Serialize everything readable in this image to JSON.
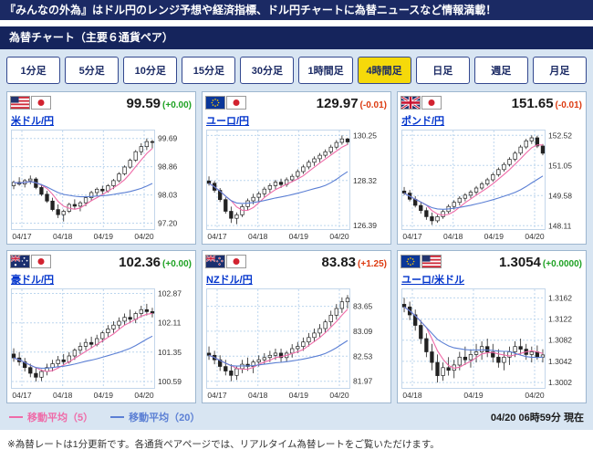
{
  "top_bar": {
    "text": "『みんなの外為』はドル円のレンジ予想や経済指標、ドル円チャートに為替ニュースなど情報満載！"
  },
  "header": {
    "title": "為替チャート（主要６通貨ペア）"
  },
  "timeframes": [
    {
      "label": "1分足",
      "selected": false
    },
    {
      "label": "5分足",
      "selected": false
    },
    {
      "label": "10分足",
      "selected": false
    },
    {
      "label": "15分足",
      "selected": false
    },
    {
      "label": "30分足",
      "selected": false
    },
    {
      "label": "1時間足",
      "selected": false
    },
    {
      "label": "4時間足",
      "selected": true
    },
    {
      "label": "日足",
      "selected": false
    },
    {
      "label": "週足",
      "selected": false
    },
    {
      "label": "月足",
      "selected": false
    }
  ],
  "legend": {
    "ma5_label": "移動平均（5）",
    "ma20_label": "移動平均（20）",
    "ma5_color": "#ef6ba8",
    "ma20_color": "#5b7fd4",
    "timestamp": "04/20 06時59分 現在"
  },
  "footer_note": "※為替レートは1分更新です。各通貨ペアページでは、リアルタイム為替レートをご覧いただけます。",
  "colors": {
    "navy": "#1b2a64",
    "content_bg": "#d8e5f2",
    "selected_tab": "#f5d90a",
    "link_blue": "#0033cc",
    "zero_change_green": "#1fa224",
    "nonzero_change_red": "#dd3b11",
    "grid_blue": "#bcd6ee"
  },
  "chart_data": [
    {
      "type": "candlestick",
      "pair": "米ドル/円",
      "flags": [
        "us",
        "jp"
      ],
      "price": "99.59",
      "change": "(+0.00)",
      "change_color": "#1fa224",
      "y_labels": [
        "99.69",
        "98.86",
        "98.03",
        "97.20"
      ],
      "x_labels": [
        "04/17",
        "04/18",
        "04/19",
        "04/20"
      ],
      "y_min": 97.0,
      "y_max": 99.95,
      "candles": [
        [
          98.3,
          98.45,
          98.2,
          98.4
        ],
        [
          98.4,
          98.55,
          98.3,
          98.35
        ],
        [
          98.35,
          98.5,
          98.25,
          98.45
        ],
        [
          98.45,
          98.6,
          98.35,
          98.5
        ],
        [
          98.5,
          98.55,
          98.2,
          98.25
        ],
        [
          98.25,
          98.35,
          98.0,
          98.05
        ],
        [
          98.05,
          98.15,
          97.8,
          97.85
        ],
        [
          97.85,
          97.95,
          97.55,
          97.6
        ],
        [
          97.6,
          97.75,
          97.35,
          97.45
        ],
        [
          97.45,
          97.6,
          97.25,
          97.55
        ],
        [
          97.55,
          97.8,
          97.5,
          97.75
        ],
        [
          97.75,
          97.9,
          97.6,
          97.7
        ],
        [
          97.7,
          97.85,
          97.55,
          97.8
        ],
        [
          97.8,
          98.0,
          97.7,
          97.95
        ],
        [
          97.95,
          98.15,
          97.85,
          98.1
        ],
        [
          98.1,
          98.25,
          98.0,
          98.2
        ],
        [
          98.2,
          98.3,
          98.05,
          98.15
        ],
        [
          98.15,
          98.35,
          98.1,
          98.3
        ],
        [
          98.3,
          98.5,
          98.2,
          98.45
        ],
        [
          98.45,
          98.7,
          98.4,
          98.65
        ],
        [
          98.65,
          98.9,
          98.6,
          98.85
        ],
        [
          98.85,
          99.1,
          98.8,
          99.05
        ],
        [
          99.05,
          99.35,
          99.0,
          99.3
        ],
        [
          99.3,
          99.55,
          99.2,
          99.45
        ],
        [
          99.45,
          99.69,
          99.35,
          99.6
        ],
        [
          99.6,
          99.65,
          99.4,
          99.59
        ]
      ]
    },
    {
      "type": "candlestick",
      "pair": "ユーロ/円",
      "flags": [
        "eu",
        "jp"
      ],
      "price": "129.97",
      "change": "(-0.01)",
      "change_color": "#dd3b11",
      "y_labels": [
        "130.25",
        "128.32",
        "126.39"
      ],
      "x_labels": [
        "04/17",
        "04/18",
        "04/19",
        "04/20"
      ],
      "y_min": 126.2,
      "y_max": 130.5,
      "candles": [
        [
          128.3,
          128.5,
          128.1,
          128.2
        ],
        [
          128.2,
          128.3,
          127.8,
          127.9
        ],
        [
          127.9,
          128.0,
          127.4,
          127.5
        ],
        [
          127.5,
          127.6,
          126.9,
          127.0
        ],
        [
          127.0,
          127.2,
          126.5,
          126.7
        ],
        [
          126.7,
          126.95,
          126.45,
          126.85
        ],
        [
          126.85,
          127.3,
          126.75,
          127.2
        ],
        [
          127.2,
          127.55,
          127.05,
          127.45
        ],
        [
          127.45,
          127.75,
          127.3,
          127.6
        ],
        [
          127.6,
          127.85,
          127.4,
          127.75
        ],
        [
          127.75,
          128.05,
          127.6,
          127.95
        ],
        [
          127.95,
          128.2,
          127.8,
          128.1
        ],
        [
          128.1,
          128.35,
          127.95,
          128.25
        ],
        [
          128.25,
          128.4,
          128.0,
          128.15
        ],
        [
          128.15,
          128.45,
          128.05,
          128.35
        ],
        [
          128.35,
          128.6,
          128.25,
          128.5
        ],
        [
          128.5,
          128.8,
          128.4,
          128.7
        ],
        [
          128.7,
          129.0,
          128.6,
          128.9
        ],
        [
          128.9,
          129.2,
          128.8,
          129.1
        ],
        [
          129.1,
          129.35,
          128.95,
          129.25
        ],
        [
          129.25,
          129.5,
          129.1,
          129.4
        ],
        [
          129.4,
          129.65,
          129.3,
          129.55
        ],
        [
          129.55,
          129.85,
          129.45,
          129.75
        ],
        [
          129.75,
          130.05,
          129.65,
          129.95
        ],
        [
          129.95,
          130.25,
          129.85,
          130.1
        ],
        [
          130.1,
          130.15,
          129.85,
          129.97
        ]
      ]
    },
    {
      "type": "candlestick",
      "pair": "ポンド/円",
      "flags": [
        "uk",
        "jp"
      ],
      "price": "151.65",
      "change": "(-0.01)",
      "change_color": "#dd3b11",
      "y_labels": [
        "152.52",
        "151.05",
        "149.58",
        "148.11"
      ],
      "x_labels": [
        "04/17",
        "04/18",
        "04/19",
        "04/20"
      ],
      "y_min": 147.9,
      "y_max": 152.8,
      "candles": [
        [
          149.8,
          150.0,
          149.6,
          149.7
        ],
        [
          149.7,
          149.85,
          149.3,
          149.4
        ],
        [
          149.4,
          149.55,
          149.0,
          149.1
        ],
        [
          149.1,
          149.25,
          148.7,
          148.85
        ],
        [
          148.85,
          149.0,
          148.4,
          148.55
        ],
        [
          148.55,
          148.75,
          148.15,
          148.35
        ],
        [
          148.35,
          148.65,
          148.25,
          148.55
        ],
        [
          148.55,
          148.9,
          148.45,
          148.8
        ],
        [
          148.8,
          149.15,
          148.7,
          149.05
        ],
        [
          149.05,
          149.35,
          148.9,
          149.25
        ],
        [
          149.25,
          149.55,
          149.1,
          149.45
        ],
        [
          149.45,
          149.7,
          149.3,
          149.6
        ],
        [
          149.6,
          149.85,
          149.45,
          149.75
        ],
        [
          149.75,
          150.05,
          149.6,
          149.95
        ],
        [
          149.95,
          150.25,
          149.85,
          150.15
        ],
        [
          150.15,
          150.45,
          150.05,
          150.35
        ],
        [
          150.35,
          150.7,
          150.25,
          150.6
        ],
        [
          150.6,
          150.95,
          150.5,
          150.85
        ],
        [
          150.85,
          151.2,
          150.75,
          151.1
        ],
        [
          151.1,
          151.45,
          151.0,
          151.35
        ],
        [
          151.35,
          151.75,
          151.25,
          151.65
        ],
        [
          151.65,
          152.05,
          151.55,
          151.95
        ],
        [
          151.95,
          152.35,
          151.85,
          152.25
        ],
        [
          152.25,
          152.52,
          152.1,
          152.4
        ],
        [
          152.4,
          152.5,
          151.9,
          152.0
        ],
        [
          152.0,
          152.1,
          151.55,
          151.65
        ]
      ]
    },
    {
      "type": "candlestick",
      "pair": "豪ドル/円",
      "flags": [
        "au",
        "jp"
      ],
      "price": "102.36",
      "change": "(+0.00)",
      "change_color": "#1fa224",
      "y_labels": [
        "102.87",
        "102.11",
        "101.35",
        "100.59"
      ],
      "x_labels": [
        "04/17",
        "04/18",
        "04/19",
        "04/20"
      ],
      "y_min": 100.4,
      "y_max": 103.0,
      "candles": [
        [
          101.3,
          101.45,
          101.1,
          101.2
        ],
        [
          101.2,
          101.35,
          101.0,
          101.1
        ],
        [
          101.1,
          101.2,
          100.85,
          100.95
        ],
        [
          100.95,
          101.05,
          100.7,
          100.8
        ],
        [
          100.8,
          100.95,
          100.59,
          100.7
        ],
        [
          100.7,
          100.9,
          100.6,
          100.85
        ],
        [
          100.85,
          101.05,
          100.75,
          100.95
        ],
        [
          100.95,
          101.15,
          100.85,
          101.05
        ],
        [
          101.05,
          101.25,
          100.95,
          101.15
        ],
        [
          101.15,
          101.3,
          101.0,
          101.1
        ],
        [
          101.1,
          101.35,
          101.05,
          101.25
        ],
        [
          101.25,
          101.45,
          101.15,
          101.4
        ],
        [
          101.4,
          101.6,
          101.3,
          101.5
        ],
        [
          101.5,
          101.7,
          101.4,
          101.6
        ],
        [
          101.6,
          101.75,
          101.45,
          101.55
        ],
        [
          101.55,
          101.8,
          101.5,
          101.7
        ],
        [
          101.7,
          101.9,
          101.6,
          101.85
        ],
        [
          101.85,
          102.05,
          101.75,
          101.95
        ],
        [
          101.95,
          102.15,
          101.85,
          102.05
        ],
        [
          102.05,
          102.25,
          101.95,
          102.15
        ],
        [
          102.15,
          102.35,
          102.05,
          102.25
        ],
        [
          102.25,
          102.45,
          102.1,
          102.2
        ],
        [
          102.2,
          102.4,
          102.1,
          102.35
        ],
        [
          102.35,
          102.55,
          102.25,
          102.45
        ],
        [
          102.45,
          102.6,
          102.3,
          102.4
        ],
        [
          102.4,
          102.5,
          102.25,
          102.36
        ]
      ]
    },
    {
      "type": "candlestick",
      "pair": "NZドル/円",
      "flags": [
        "nz",
        "jp"
      ],
      "price": "83.83",
      "change": "(+1.25)",
      "change_color": "#dd3b11",
      "y_labels": [
        "83.65",
        "83.09",
        "82.53",
        "81.97"
      ],
      "x_labels": [
        "04/17",
        "04/18",
        "04/19",
        "04/20"
      ],
      "y_min": 81.8,
      "y_max": 84.05,
      "candles": [
        [
          82.6,
          82.75,
          82.45,
          82.55
        ],
        [
          82.55,
          82.65,
          82.35,
          82.45
        ],
        [
          82.45,
          82.55,
          82.2,
          82.3
        ],
        [
          82.3,
          82.45,
          82.1,
          82.2
        ],
        [
          82.2,
          82.35,
          81.97,
          82.1
        ],
        [
          82.1,
          82.3,
          82.0,
          82.25
        ],
        [
          82.25,
          82.45,
          82.15,
          82.35
        ],
        [
          82.35,
          82.5,
          82.2,
          82.3
        ],
        [
          82.3,
          82.45,
          82.15,
          82.4
        ],
        [
          82.4,
          82.55,
          82.3,
          82.45
        ],
        [
          82.45,
          82.6,
          82.35,
          82.5
        ],
        [
          82.5,
          82.65,
          82.4,
          82.55
        ],
        [
          82.55,
          82.7,
          82.45,
          82.6
        ],
        [
          82.6,
          82.7,
          82.4,
          82.5
        ],
        [
          82.5,
          82.65,
          82.4,
          82.6
        ],
        [
          82.6,
          82.8,
          82.5,
          82.7
        ],
        [
          82.7,
          82.85,
          82.6,
          82.75
        ],
        [
          82.75,
          82.95,
          82.65,
          82.85
        ],
        [
          82.85,
          83.05,
          82.75,
          82.95
        ],
        [
          82.95,
          83.15,
          82.85,
          83.05
        ],
        [
          83.05,
          83.25,
          82.95,
          83.15
        ],
        [
          83.15,
          83.35,
          83.05,
          83.3
        ],
        [
          83.3,
          83.55,
          83.2,
          83.45
        ],
        [
          83.45,
          83.7,
          83.35,
          83.6
        ],
        [
          83.6,
          83.85,
          83.5,
          83.75
        ],
        [
          83.75,
          83.9,
          83.6,
          83.83
        ]
      ]
    },
    {
      "type": "candlestick",
      "pair": "ユーロ/米ドル",
      "flags": [
        "eu",
        "us"
      ],
      "price": "1.3054",
      "change": "(+0.0000)",
      "change_color": "#1fa224",
      "y_labels": [
        "1.3162",
        "1.3122",
        "1.3082",
        "1.3042",
        "1.3002"
      ],
      "x_labels": [
        "04/18",
        "04/19",
        "04/20"
      ],
      "y_min": 1.299,
      "y_max": 1.318,
      "candles": [
        [
          1.315,
          1.3162,
          1.3135,
          1.3145
        ],
        [
          1.3145,
          1.3155,
          1.312,
          1.313
        ],
        [
          1.313,
          1.314,
          1.31,
          1.311
        ],
        [
          1.311,
          1.312,
          1.3075,
          1.3085
        ],
        [
          1.3085,
          1.3095,
          1.305,
          1.306
        ],
        [
          1.306,
          1.3075,
          1.3025,
          1.304
        ],
        [
          1.304,
          1.3055,
          1.3002,
          1.3015
        ],
        [
          1.3015,
          1.304,
          1.3005,
          1.303
        ],
        [
          1.303,
          1.305,
          1.3015,
          1.3025
        ],
        [
          1.3025,
          1.3045,
          1.301,
          1.3035
        ],
        [
          1.3035,
          1.306,
          1.3025,
          1.305
        ],
        [
          1.305,
          1.307,
          1.3035,
          1.3045
        ],
        [
          1.3045,
          1.3065,
          1.303,
          1.3055
        ],
        [
          1.3055,
          1.3075,
          1.304,
          1.306
        ],
        [
          1.306,
          1.308,
          1.3045,
          1.307
        ],
        [
          1.307,
          1.3085,
          1.305,
          1.306
        ],
        [
          1.306,
          1.3075,
          1.304,
          1.305
        ],
        [
          1.305,
          1.3065,
          1.303,
          1.304
        ],
        [
          1.304,
          1.306,
          1.3025,
          1.305
        ],
        [
          1.305,
          1.307,
          1.3035,
          1.306
        ],
        [
          1.306,
          1.308,
          1.305,
          1.307
        ],
        [
          1.307,
          1.3085,
          1.3055,
          1.3065
        ],
        [
          1.3065,
          1.3075,
          1.3045,
          1.3055
        ],
        [
          1.3055,
          1.307,
          1.304,
          1.306
        ],
        [
          1.306,
          1.3072,
          1.3045,
          1.305
        ],
        [
          1.305,
          1.3065,
          1.304,
          1.3054
        ]
      ]
    }
  ]
}
